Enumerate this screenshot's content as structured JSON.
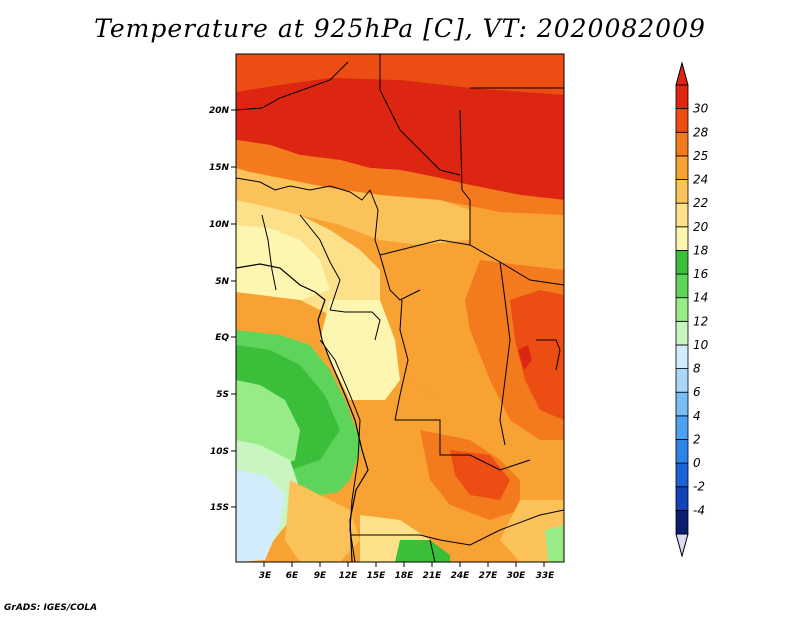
{
  "title": "Temperature at 925hPa [C], VT: 2020082009",
  "footer": "GrADS: IGES/COLA",
  "map": {
    "lat_labels": [
      "20N",
      "15N",
      "10N",
      "5N",
      "EQ",
      "5S",
      "10S",
      "15S"
    ],
    "lon_labels": [
      "3E",
      "6E",
      "9E",
      "12E",
      "15E",
      "18E",
      "21E",
      "24E",
      "27E",
      "30E",
      "33E"
    ]
  },
  "colorbar": {
    "levels": [
      "-4",
      "-2",
      "0",
      "2",
      "4",
      "6",
      "8",
      "10",
      "12",
      "14",
      "16",
      "18",
      "20",
      "22",
      "24",
      "25",
      "28",
      "30"
    ],
    "colors": [
      "#0b1e6e",
      "#1244b8",
      "#1a63d6",
      "#2d84e8",
      "#4ea2f0",
      "#79bdf5",
      "#a9d6f9",
      "#d3ecfb",
      "#c8f5c0",
      "#98ec88",
      "#5fd45a",
      "#3bbf3b",
      "#fdf6b0",
      "#fde08a",
      "#fbc25a",
      "#f8a234",
      "#f47a1e",
      "#ec4d12",
      "#dd2612"
    ],
    "lower_color": "#dcd9f3",
    "upper_color": "#dd2612"
  }
}
